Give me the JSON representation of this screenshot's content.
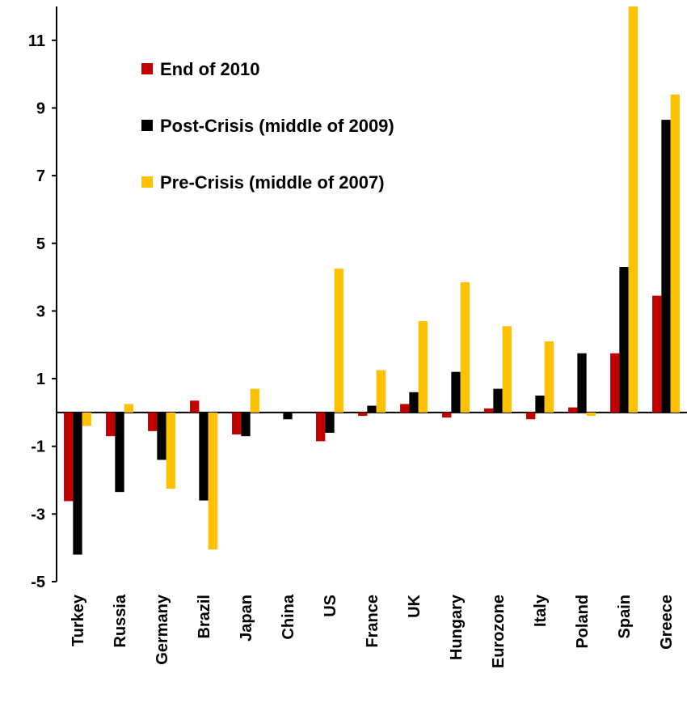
{
  "chart_data": {
    "type": "bar",
    "categories": [
      "Turkey",
      "Russia",
      "Germany",
      "Brazil",
      "Japan",
      "China",
      "US",
      "France",
      "UK",
      "Hungary",
      "Eurozone",
      "Italy",
      "Poland",
      "Spain",
      "Greece"
    ],
    "series": [
      {
        "name": "End of 2010",
        "color": "#c00000",
        "values": [
          -2.62,
          -0.7,
          -0.55,
          0.35,
          -0.65,
          0,
          -0.85,
          -0.1,
          0.25,
          -0.15,
          0.12,
          -0.2,
          0.15,
          1.75,
          3.45
        ]
      },
      {
        "name": "Post-Crisis (middle of 2009)",
        "color": "#000000",
        "values": [
          -4.2,
          -2.35,
          -1.4,
          -2.6,
          -0.7,
          -0.2,
          -0.6,
          0.2,
          0.6,
          1.2,
          0.7,
          0.5,
          1.75,
          4.3,
          8.65
        ]
      },
      {
        "name": "Pre-Crisis (middle of 2007)",
        "color": "#ffc000",
        "values": [
          -0.4,
          0.25,
          -2.25,
          -4.05,
          0.7,
          0,
          4.25,
          1.25,
          2.7,
          3.85,
          2.55,
          2.1,
          -0.1,
          12,
          9.4
        ]
      }
    ],
    "ylim": [
      -5,
      12
    ],
    "yticks": [
      -5,
      -3,
      -1,
      1,
      3,
      5,
      7,
      9,
      11
    ],
    "grid": false,
    "legend": "top-left"
  }
}
